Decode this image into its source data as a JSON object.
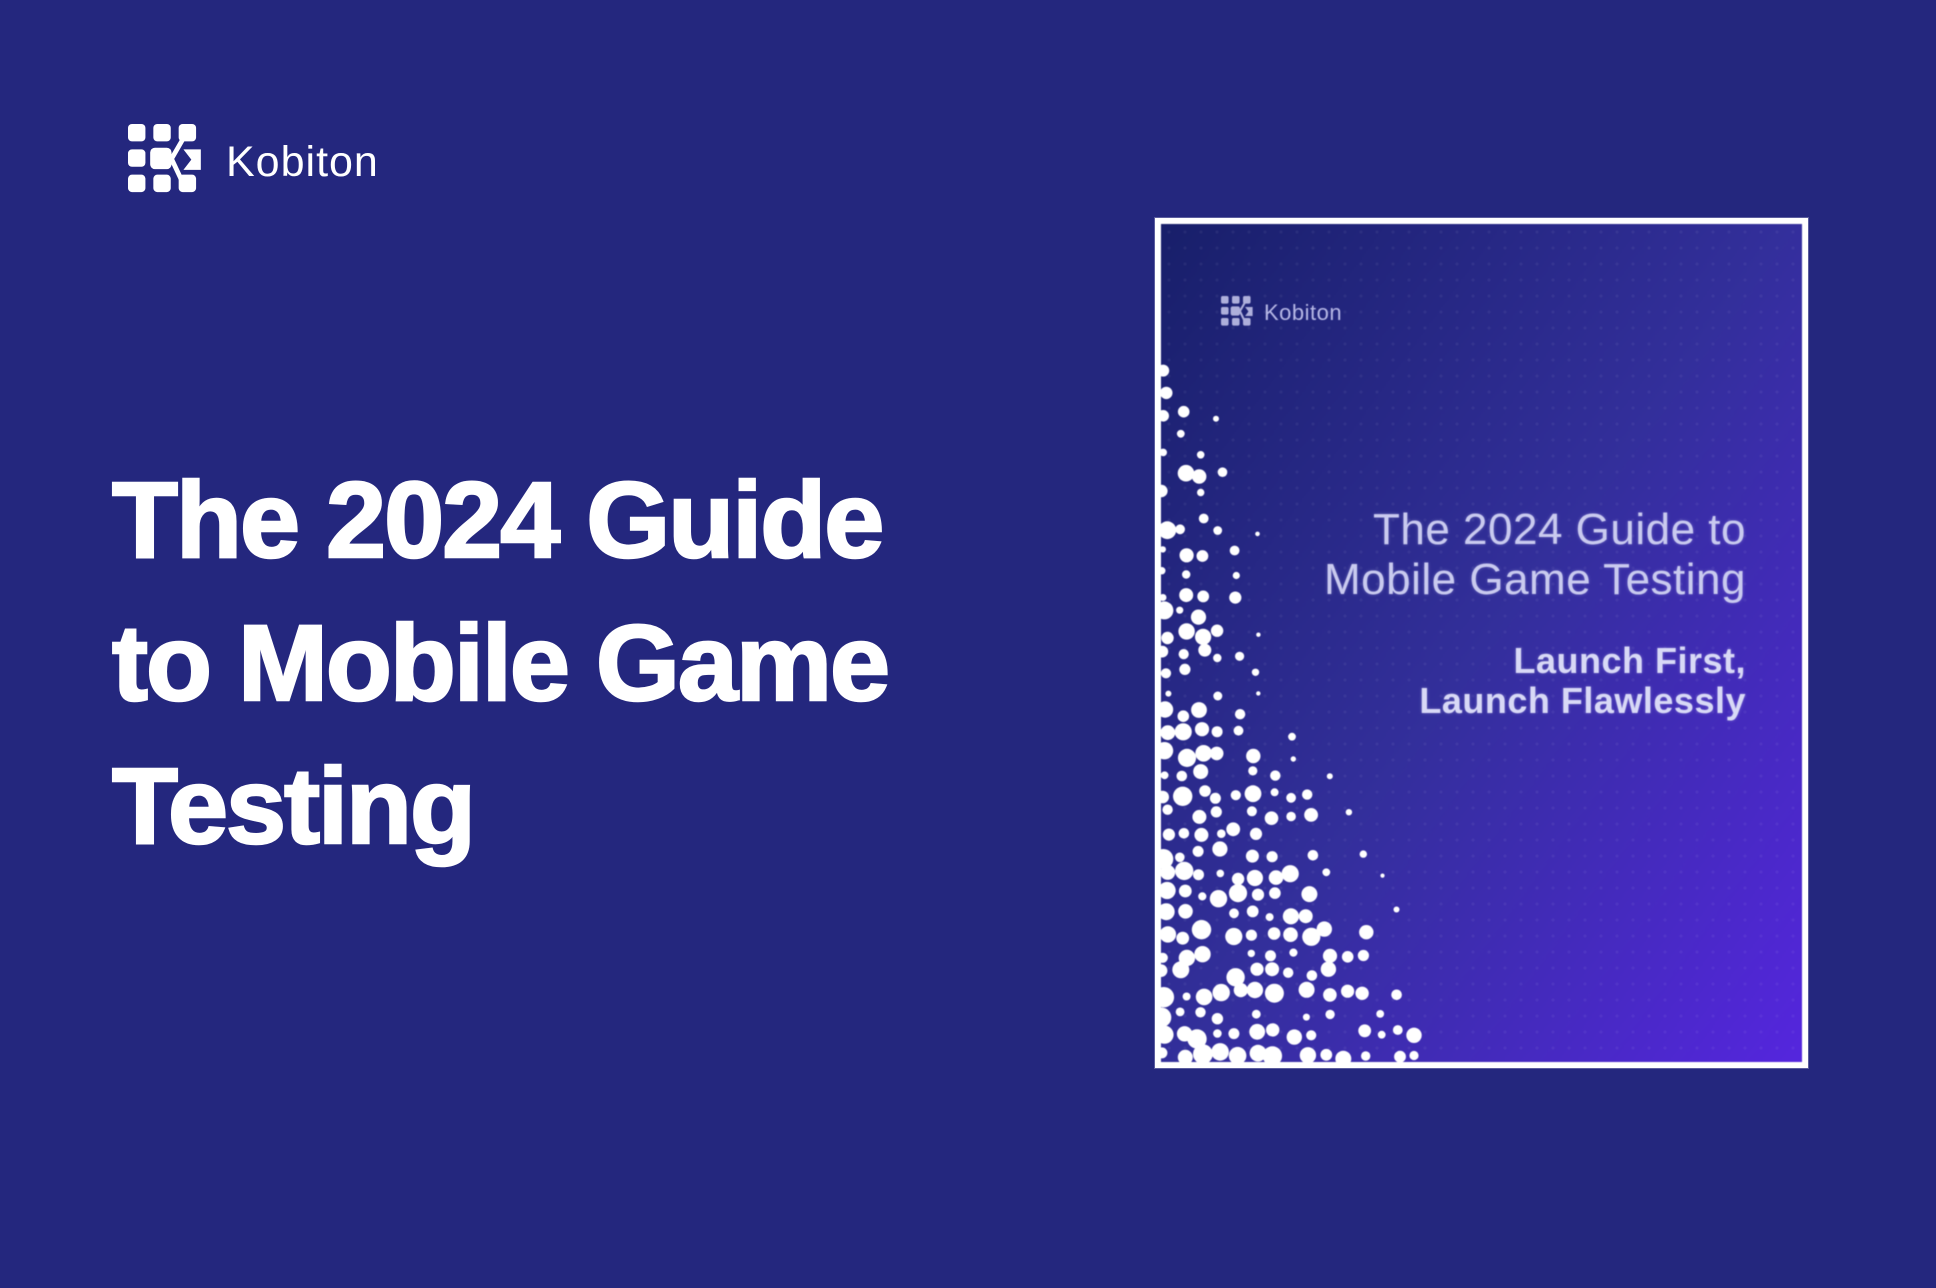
{
  "brand": {
    "name": "Kobiton"
  },
  "hero": {
    "title_lines": [
      "The 2024 Guide",
      "to Mobile Game",
      "Testing"
    ]
  },
  "ebook_cover": {
    "brand": "Kobiton",
    "title_lines": [
      "The 2024 Guide to",
      "Mobile Game Testing"
    ],
    "subtitle_lines": [
      "Launch First,",
      "Launch Flawlessly"
    ]
  },
  "colors": {
    "page_background": "#24277E",
    "heading_text": "#FFFFFF",
    "cover_frame": "#FFFFFF",
    "cover_gradient_start": "#181F6A",
    "cover_gradient_mid": "#332F9B",
    "cover_gradient_end": "#5526DE",
    "cover_title_text": "#C9CAEF",
    "cover_subtitle_text": "#D8D9F6",
    "cover_dots": "#FFFFFF"
  }
}
